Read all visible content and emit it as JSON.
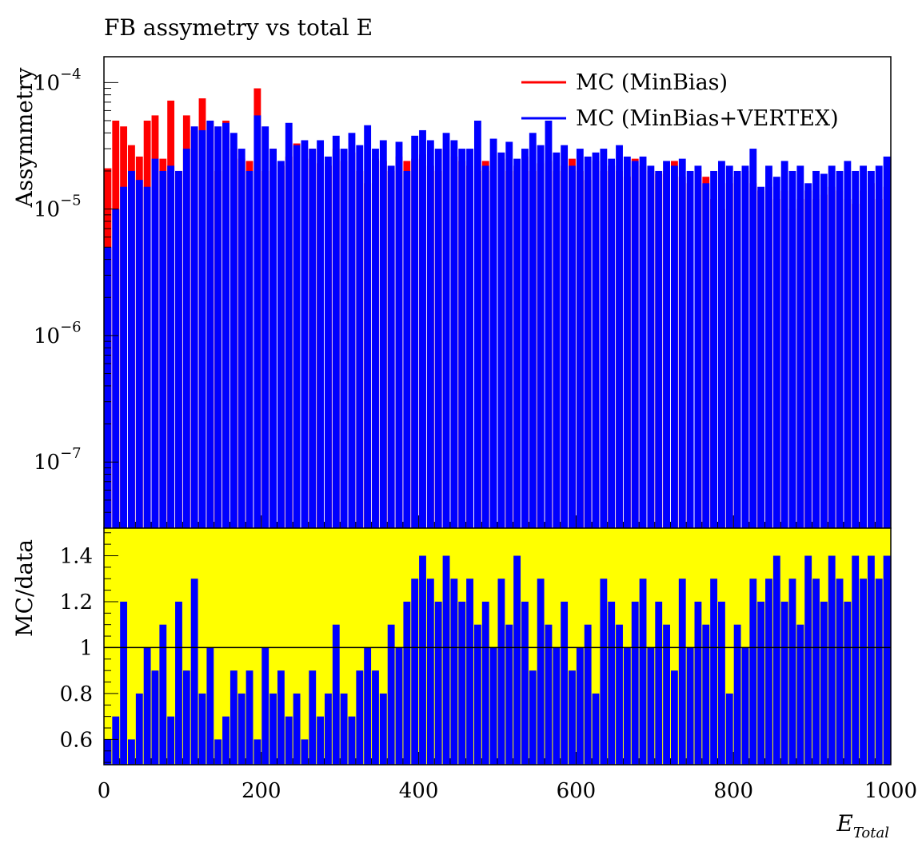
{
  "chart_data": {
    "type": "bar",
    "title": "FB assymetry vs total E",
    "xlabel_main": "E",
    "xlabel_sub": "Total",
    "x_range": [
      0,
      1000
    ],
    "x_ticks": [
      0,
      200,
      400,
      600,
      800,
      1000
    ],
    "upper": {
      "ylabel": "Assymmetry",
      "yscale": "log",
      "ylim": [
        3e-08,
        0.00016
      ],
      "y_ticks": [
        {
          "base": "10",
          "exp": "−4",
          "value": 0.0001
        },
        {
          "base": "10",
          "exp": "−5",
          "value": 1e-05
        },
        {
          "base": "10",
          "exp": "−6",
          "value": 1e-06
        },
        {
          "base": "10",
          "exp": "−7",
          "value": 1e-07
        }
      ],
      "legend_position": "top-right",
      "series": [
        {
          "name": "MC (MinBias)",
          "color": "#ff0000",
          "x": [
            5,
            15,
            25,
            35,
            45,
            55,
            65,
            75,
            85,
            95,
            105,
            115,
            125,
            135,
            145,
            155,
            165,
            175,
            185,
            195,
            205,
            215,
            225,
            235,
            245,
            255,
            265,
            275,
            285,
            295,
            305,
            315,
            325,
            335,
            345,
            355,
            365,
            375,
            385,
            395,
            405,
            415,
            425,
            435,
            445,
            455,
            465,
            475,
            485,
            495,
            505,
            515,
            525,
            535,
            545,
            555,
            565,
            575,
            585,
            595,
            605,
            615,
            625,
            635,
            645,
            655,
            665,
            675,
            685,
            695,
            705,
            715,
            725,
            735,
            745,
            755,
            765,
            775,
            785,
            795,
            805,
            815,
            825,
            835,
            845,
            855,
            865,
            875,
            885,
            895,
            905,
            915,
            925,
            935,
            945,
            955,
            965,
            975,
            985,
            995
          ],
          "values": [
            2.1e-05,
            5e-05,
            4.5e-05,
            3.2e-05,
            2.6e-05,
            5e-05,
            5.5e-05,
            2.5e-05,
            7.2e-05,
            2e-05,
            5.5e-05,
            4.2e-05,
            7.5e-05,
            5e-05,
            2e-05,
            5e-05,
            3e-05,
            2.5e-05,
            2.4e-05,
            9e-05,
            2e-05,
            3e-05,
            2.2e-05,
            2.6e-05,
            3.3e-05,
            2.5e-05,
            3e-05,
            2.3e-05,
            2.2e-05,
            3e-05,
            2.4e-05,
            2.8e-05,
            2e-05,
            1.6e-05,
            2.5e-05,
            2.4e-05,
            2e-05,
            2.6e-05,
            2.4e-05,
            2.5e-05,
            2.7e-05,
            2.2e-05,
            2e-05,
            3e-05,
            2.6e-05,
            2.4e-05,
            2.2e-05,
            2e-05,
            2.4e-05,
            2e-05,
            2.5e-05,
            2e-05,
            2.2e-05,
            2.6e-05,
            2e-05,
            2.3e-05,
            2.4e-05,
            2e-05,
            2.2e-05,
            2.5e-05,
            2e-05,
            1.7e-05,
            2.4e-05,
            2e-05,
            2.2e-05,
            2e-05,
            1.8e-05,
            2.5e-05,
            2.2e-05,
            2e-05,
            1.9e-05,
            2e-05,
            2.4e-05,
            1.8e-05,
            1.6e-05,
            2e-05,
            1.8e-05,
            1.2e-05,
            1e-05,
            1.6e-05,
            1.8e-05,
            2e-05,
            1.6e-05,
            1.4e-05,
            1.5e-05,
            1.2e-05,
            1.4e-05,
            1e-05,
            1.2e-05,
            1.4e-05,
            1.2e-05,
            1.3e-05,
            1.5e-05,
            1.4e-05,
            1.2e-05,
            1.1e-05,
            1.4e-05,
            1.6e-05,
            1.2e-05,
            1.5e-05
          ]
        },
        {
          "name": "MC (MinBias+VERTEX)",
          "color": "#0000ff",
          "x": [
            5,
            15,
            25,
            35,
            45,
            55,
            65,
            75,
            85,
            95,
            105,
            115,
            125,
            135,
            145,
            155,
            165,
            175,
            185,
            195,
            205,
            215,
            225,
            235,
            245,
            255,
            265,
            275,
            285,
            295,
            305,
            315,
            325,
            335,
            345,
            355,
            365,
            375,
            385,
            395,
            405,
            415,
            425,
            435,
            445,
            455,
            465,
            475,
            485,
            495,
            505,
            515,
            525,
            535,
            545,
            555,
            565,
            575,
            585,
            595,
            605,
            615,
            625,
            635,
            645,
            655,
            665,
            675,
            685,
            695,
            705,
            715,
            725,
            735,
            745,
            755,
            765,
            775,
            785,
            795,
            805,
            815,
            825,
            835,
            845,
            855,
            865,
            875,
            885,
            895,
            905,
            915,
            925,
            935,
            945,
            955,
            965,
            975,
            985,
            995
          ],
          "values": [
            5e-06,
            1e-05,
            1.5e-05,
            2e-05,
            1.7e-05,
            1.5e-05,
            2.5e-05,
            2e-05,
            2.2e-05,
            2e-05,
            3e-05,
            4.5e-05,
            4.2e-05,
            5e-05,
            4.5e-05,
            4.8e-05,
            4e-05,
            3e-05,
            2e-05,
            5.5e-05,
            4.5e-05,
            3e-05,
            2.4e-05,
            4.8e-05,
            3.2e-05,
            3.5e-05,
            3e-05,
            3.5e-05,
            2.6e-05,
            3.8e-05,
            3e-05,
            4e-05,
            3.2e-05,
            4.6e-05,
            3e-05,
            3.5e-05,
            2.2e-05,
            3.4e-05,
            2e-05,
            3.8e-05,
            4.2e-05,
            3.5e-05,
            3e-05,
            4e-05,
            3.5e-05,
            3e-05,
            3e-05,
            5e-05,
            2.2e-05,
            3.6e-05,
            2.8e-05,
            3.4e-05,
            2.5e-05,
            3e-05,
            4e-05,
            3.2e-05,
            5e-05,
            2.8e-05,
            3.2e-05,
            2.2e-05,
            3e-05,
            2.6e-05,
            2.8e-05,
            3e-05,
            2.5e-05,
            3.2e-05,
            2.6e-05,
            2.4e-05,
            2.6e-05,
            2.2e-05,
            2e-05,
            2.4e-05,
            2.2e-05,
            2.5e-05,
            2e-05,
            2.2e-05,
            1.6e-05,
            2e-05,
            2.4e-05,
            2.2e-05,
            2e-05,
            2.2e-05,
            3e-05,
            1.5e-05,
            2.2e-05,
            1.8e-05,
            2.4e-05,
            2e-05,
            2.2e-05,
            1.6e-05,
            2e-05,
            1.9e-05,
            2.2e-05,
            2e-05,
            2.4e-05,
            2e-05,
            2.2e-05,
            2e-05,
            2.2e-05,
            2.6e-05
          ]
        }
      ]
    },
    "lower": {
      "ylabel": "MC/data",
      "ylim": [
        0.49,
        1.52
      ],
      "y_ticks": [
        "0.6",
        "0.8",
        "1",
        "1.2",
        "1.4"
      ],
      "y_tick_values": [
        0.6,
        0.8,
        1.0,
        1.2,
        1.4
      ],
      "reference_line": 1.0,
      "band_color": "#ffff00",
      "ratio_color": "#0000ff",
      "x": [
        5,
        15,
        25,
        35,
        45,
        55,
        65,
        75,
        85,
        95,
        105,
        115,
        125,
        135,
        145,
        155,
        165,
        175,
        185,
        195,
        205,
        215,
        225,
        235,
        245,
        255,
        265,
        275,
        285,
        295,
        305,
        315,
        325,
        335,
        345,
        355,
        365,
        375,
        385,
        395,
        405,
        415,
        425,
        435,
        445,
        455,
        465,
        475,
        485,
        495,
        505,
        515,
        525,
        535,
        545,
        555,
        565,
        575,
        585,
        595,
        605,
        615,
        625,
        635,
        645,
        655,
        665,
        675,
        685,
        695,
        705,
        715,
        725,
        735,
        745,
        755,
        765,
        775,
        785,
        795,
        805,
        815,
        825,
        835,
        845,
        855,
        865,
        875,
        885,
        895,
        905,
        915,
        925,
        935,
        945,
        955,
        965,
        975,
        985,
        995
      ],
      "values": [
        0.6,
        0.7,
        1.2,
        0.6,
        0.8,
        1.0,
        0.9,
        1.1,
        0.7,
        1.2,
        0.9,
        1.3,
        0.8,
        1.0,
        0.6,
        0.7,
        0.9,
        0.8,
        0.9,
        0.6,
        1.0,
        0.8,
        0.9,
        0.7,
        0.8,
        0.6,
        0.9,
        0.7,
        0.8,
        1.1,
        0.8,
        0.7,
        0.9,
        1.0,
        0.9,
        0.8,
        1.1,
        1.0,
        1.2,
        1.3,
        1.4,
        1.3,
        1.2,
        1.4,
        1.3,
        1.2,
        1.3,
        1.1,
        1.2,
        1.0,
        1.3,
        1.1,
        1.4,
        1.2,
        0.9,
        1.3,
        1.1,
        1.0,
        1.2,
        0.9,
        1.0,
        1.1,
        0.8,
        1.3,
        1.2,
        1.1,
        1.0,
        1.2,
        1.3,
        1.0,
        1.2,
        1.1,
        0.9,
        1.3,
        1.0,
        1.2,
        1.1,
        1.3,
        1.2,
        0.8,
        1.1,
        1.0,
        1.3,
        1.2,
        1.3,
        1.4,
        1.2,
        1.3,
        1.1,
        1.4,
        1.3,
        1.2,
        1.4,
        1.3,
        1.2,
        1.4,
        1.3,
        1.4,
        1.3,
        1.4
      ]
    }
  }
}
